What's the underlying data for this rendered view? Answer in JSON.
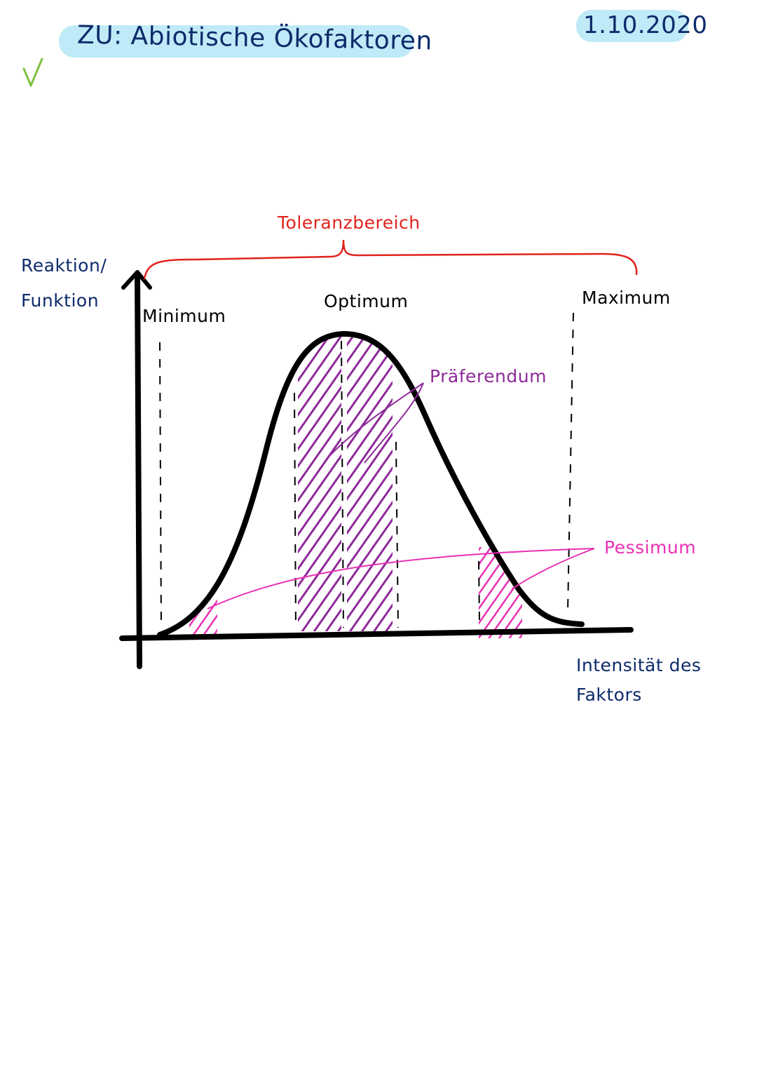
{
  "header": {
    "title": "ZU: Abiotische Ökofaktoren",
    "date": "1.10.2020"
  },
  "diagram": {
    "y_axis_label_line1": "Reaktion/",
    "y_axis_label_line2": "Funktion",
    "x_axis_label_line1": "Intensität des",
    "x_axis_label_line2": "Faktors",
    "tolerance_range_label": "Toleranzbereich",
    "minimum_label": "Minimum",
    "optimum_label": "Optimum",
    "maximum_label": "Maximum",
    "praeferendum_label": "Präferendum",
    "pessimum_label": "Pessimum"
  },
  "colors": {
    "title_highlight": "#bfeaf7",
    "dark_blue": "#0d2b6b",
    "red": "#e0241b",
    "purple": "#8e2a9a",
    "magenta": "#e930b4",
    "check_green": "#7cc242",
    "ink": "#000000"
  },
  "icons": {
    "check": "check-icon"
  }
}
